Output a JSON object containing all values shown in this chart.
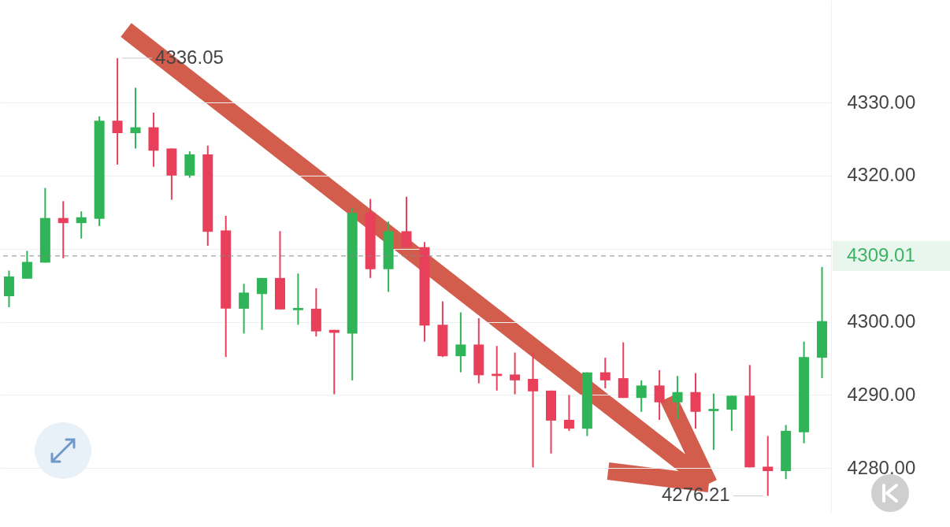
{
  "chart_data": {
    "type": "candlestick",
    "categories": [
      null,
      null,
      null,
      null,
      null,
      null,
      null,
      null,
      null,
      null,
      null,
      null,
      null,
      null,
      null,
      null,
      null,
      null,
      null,
      null,
      null,
      null,
      null,
      null,
      null,
      null,
      null,
      null,
      null,
      null,
      null,
      null,
      null,
      null,
      null,
      null,
      null,
      null,
      null,
      null,
      null,
      null,
      null,
      null,
      null,
      null
    ],
    "ohlc": [
      [
        4303.5,
        4307,
        4302,
        4306.2
      ],
      [
        4305.9,
        4309.7,
        4305.9,
        4308.2
      ],
      [
        4308.1,
        4318.3,
        4308.1,
        4314.2
      ],
      [
        4314.2,
        4316.5,
        4308.7,
        4313.5
      ],
      [
        4313.5,
        4315.1,
        4311.4,
        4314.3
      ],
      [
        4314.1,
        4328.1,
        4313.1,
        4327.5
      ],
      [
        4327.5,
        4336.05,
        4321.5,
        4325.8
      ],
      [
        4325.8,
        4332,
        4323.7,
        4326.6
      ],
      [
        4326.6,
        4328.6,
        4321.2,
        4323.4
      ],
      [
        4323.7,
        4323.7,
        4316.7,
        4320
      ],
      [
        4320,
        4323.3,
        4319.7,
        4322.9
      ],
      [
        4322.9,
        4324.1,
        4310.4,
        4312.3
      ],
      [
        4312.5,
        4314.5,
        4295.2,
        4301.8
      ],
      [
        4301.8,
        4305.2,
        4298.4,
        4304
      ],
      [
        4303.8,
        4306,
        4298.9,
        4306
      ],
      [
        4306,
        4312.4,
        4301.7,
        4301.7
      ],
      [
        4301.6,
        4306.6,
        4299.6,
        4301.9
      ],
      [
        4301.8,
        4304.6,
        4298,
        4298.7
      ],
      [
        4298.9,
        4298.9,
        4290.1,
        4298.5
      ],
      [
        4298.4,
        4315.6,
        4292,
        4314.9
      ],
      [
        4314.9,
        4316.8,
        4306,
        4307.2
      ],
      [
        4307.2,
        4313.7,
        4304.1,
        4312.4
      ],
      [
        4312.4,
        4317.1,
        4310.2,
        4310.2
      ],
      [
        4310.2,
        4310.9,
        4297.3,
        4299.5
      ],
      [
        4299.6,
        4302.8,
        4295.2,
        4295.3
      ],
      [
        4295.3,
        4301.3,
        4293.1,
        4296.9
      ],
      [
        4296.9,
        4300.5,
        4291.6,
        4292.7
      ],
      [
        4292.9,
        4296.7,
        4290.6,
        4292.6
      ],
      [
        4292.8,
        4295.8,
        4290.1,
        4292
      ],
      [
        4292.2,
        4295.8,
        4280.1,
        4290.5
      ],
      [
        4290.6,
        4290.6,
        4282,
        4286.5
      ],
      [
        4286.6,
        4290,
        4285.1,
        4285.4
      ],
      [
        4285.4,
        4293.1,
        4284.4,
        4293.1
      ],
      [
        4293.1,
        4295.1,
        4290.9,
        4292
      ],
      [
        4292.3,
        4297.2,
        4289.6,
        4289.6
      ],
      [
        4289.6,
        4292,
        4287.7,
        4291.3
      ],
      [
        4291.3,
        4293.4,
        4286.6,
        4289
      ],
      [
        4289,
        4292.6,
        4286.7,
        4290.4
      ],
      [
        4290.4,
        4293,
        4285.4,
        4287.7
      ],
      [
        4287.8,
        4290.2,
        4282.5,
        4288.1
      ],
      [
        4288,
        4289.9,
        4285.1,
        4289.9
      ],
      [
        4289.9,
        4294.1,
        4280.1,
        4280.1
      ],
      [
        4280.2,
        4284.4,
        4276.21,
        4279.6
      ],
      [
        4279.6,
        4285.9,
        4278.5,
        4285.1
      ],
      [
        4284.9,
        4297.3,
        4283.4,
        4295.2
      ],
      [
        4295.1,
        4307.5,
        4292.3,
        4300.1
      ]
    ],
    "ylim": [
      4274,
      4344
    ],
    "yticks": [
      {
        "value": 4280,
        "label": "4280.00"
      },
      {
        "value": 4290,
        "label": "4290.00"
      },
      {
        "value": 4300,
        "label": "4300.00"
      },
      {
        "value": 4310,
        "label": null
      },
      {
        "value": 4320,
        "label": "4320.00"
      },
      {
        "value": 4330,
        "label": "4330.00"
      }
    ],
    "grid": true,
    "tick_labels": "y",
    "ref_lines": [
      {
        "axis": "y",
        "value": 4309.01,
        "label": "4309.01",
        "color": "#888888",
        "line_style": "dashed"
      }
    ],
    "annotations": [
      "4336.05",
      "4276.21"
    ]
  }
}
